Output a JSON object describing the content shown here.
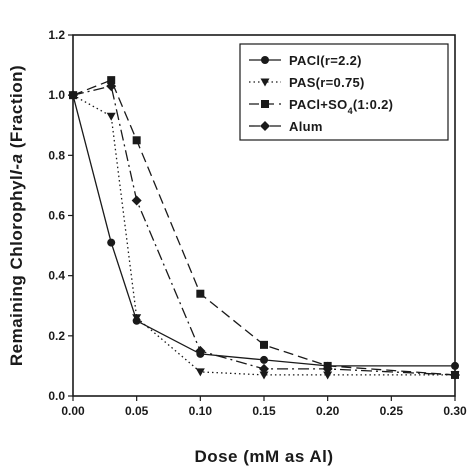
{
  "chart_data": {
    "type": "line",
    "xlabel": "Dose (mM as Al)",
    "ylabel_parts": [
      "Remaining Chlorophyl",
      "l-a",
      " (Fraction)"
    ],
    "xlim": [
      0.0,
      0.3
    ],
    "ylim": [
      0.0,
      1.2
    ],
    "xticks": [
      "0.00",
      "0.05",
      "0.10",
      "0.15",
      "0.20",
      "0.25",
      "0.30"
    ],
    "yticks": [
      "0.0",
      "0.2",
      "0.4",
      "0.6",
      "0.8",
      "1.0",
      "1.2"
    ],
    "grid": false,
    "legend_position": "top-right",
    "series": [
      {
        "name": "PACl(r=2.2)",
        "legend_parts": [
          "PACl(r=2.2)"
        ],
        "marker": "circle",
        "dash": "solid",
        "x": [
          0.0,
          0.03,
          0.05,
          0.1,
          0.15,
          0.2,
          0.3
        ],
        "y": [
          1.0,
          0.51,
          0.25,
          0.14,
          0.12,
          0.1,
          0.1
        ]
      },
      {
        "name": "PAS(r=0.75)",
        "legend_parts": [
          "PAS(r=0.75)"
        ],
        "marker": "triangle-down",
        "dash": "dotted",
        "x": [
          0.0,
          0.03,
          0.05,
          0.1,
          0.15,
          0.2,
          0.3
        ],
        "y": [
          1.0,
          0.93,
          0.26,
          0.08,
          0.07,
          0.07,
          0.07
        ]
      },
      {
        "name": "PACl+SO4(1:0.2)",
        "legend_parts": [
          "PACl+SO",
          "4",
          "(1:0.2)"
        ],
        "marker": "square",
        "dash": "dashed",
        "x": [
          0.0,
          0.03,
          0.05,
          0.1,
          0.15,
          0.2,
          0.3
        ],
        "y": [
          1.0,
          1.05,
          0.85,
          0.34,
          0.17,
          0.1,
          0.07
        ]
      },
      {
        "name": "Alum",
        "legend_parts": [
          "Alum"
        ],
        "marker": "diamond",
        "dash": "dashdot",
        "x": [
          0.0,
          0.03,
          0.05,
          0.1,
          0.15,
          0.2,
          0.3
        ],
        "y": [
          1.0,
          1.03,
          0.65,
          0.15,
          0.09,
          0.09,
          0.07
        ]
      }
    ]
  }
}
